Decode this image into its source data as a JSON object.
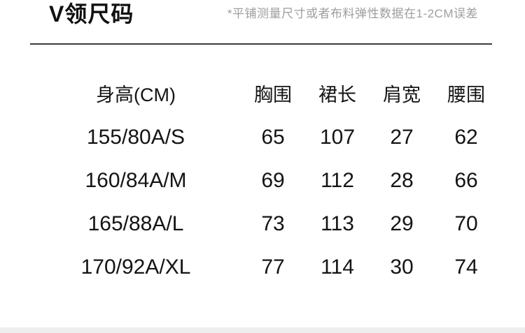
{
  "header": {
    "title": "V领尺码",
    "note": "*平铺测量尺寸或者布料弹性数据在1-2CM误差"
  },
  "size_table": {
    "columns": {
      "size": "身高(CM)",
      "bust": "胸围",
      "skirt_length": "裙长",
      "shoulder": "肩宽",
      "waist": "腰围"
    },
    "rows": [
      {
        "size": "155/80A/S",
        "bust": "65",
        "skirt_length": "107",
        "shoulder": "27",
        "waist": "62"
      },
      {
        "size": "160/84A/M",
        "bust": "69",
        "skirt_length": "112",
        "shoulder": "28",
        "waist": "66"
      },
      {
        "size": "165/88A/L",
        "bust": "73",
        "skirt_length": "113",
        "shoulder": "29",
        "waist": "70"
      },
      {
        "size": "170/92A/XL",
        "bust": "77",
        "skirt_length": "114",
        "shoulder": "30",
        "waist": "74"
      }
    ]
  },
  "colors": {
    "text": "#141414",
    "note_text": "#9e9e9e",
    "divider": "#3d3d3d",
    "bottom_bar": "#eeeeee"
  }
}
